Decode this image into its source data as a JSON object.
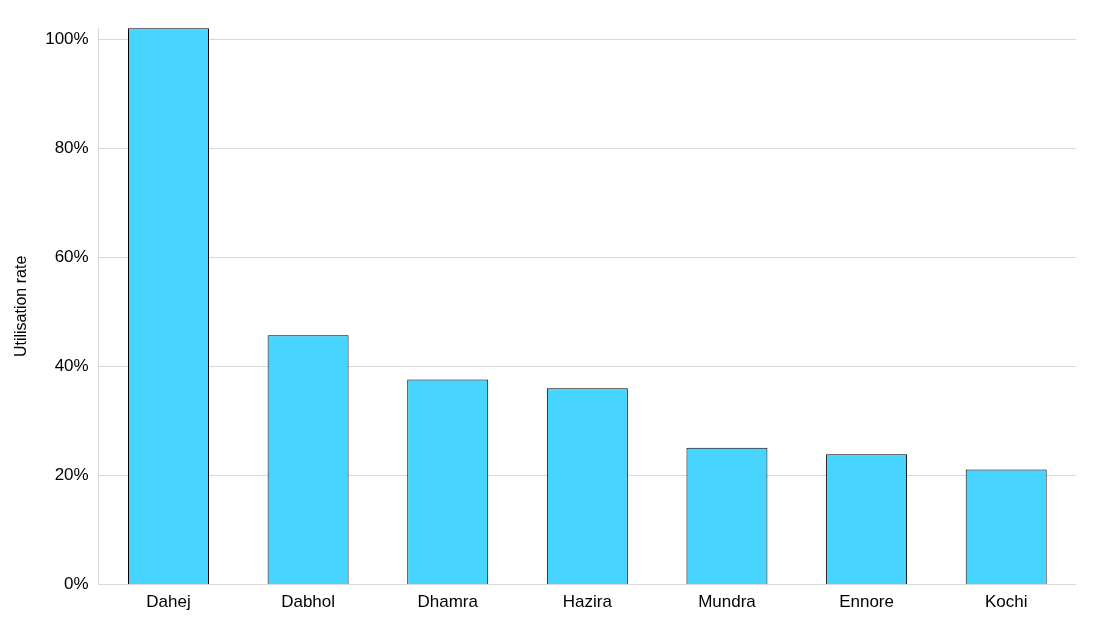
{
  "chart_data": {
    "type": "bar",
    "ylabel": "Utilisation rate",
    "categories": [
      "Dahej",
      "Dabhol",
      "Dhamra",
      "Hazira",
      "Mundra",
      "Ennore",
      "Kochi"
    ],
    "values": [
      102,
      45.7,
      37.6,
      36,
      25.1,
      23.9,
      21.1
    ],
    "color": "#47d4ff",
    "ylim": [
      0,
      102
    ],
    "yticks": [
      {
        "value": 0,
        "label": "0%"
      },
      {
        "value": 20,
        "label": "20%"
      },
      {
        "value": 40,
        "label": "40%"
      },
      {
        "value": 60,
        "label": "60%"
      },
      {
        "value": 80,
        "label": "80%"
      },
      {
        "value": 100,
        "label": "100%"
      }
    ],
    "grid": "y"
  }
}
